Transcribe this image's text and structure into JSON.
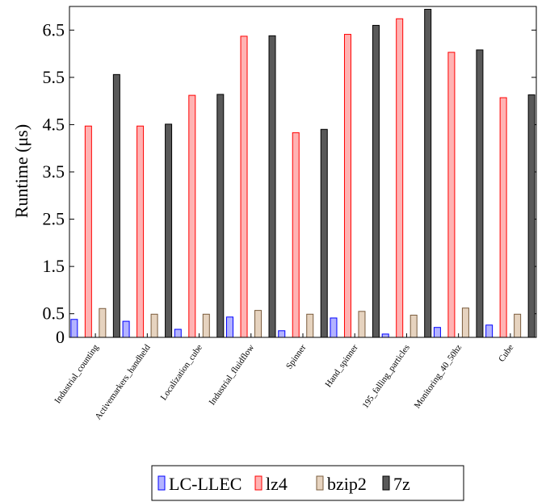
{
  "chart_data": {
    "type": "bar",
    "title": "",
    "xlabel": "",
    "ylabel": "Runtime (μs)",
    "ylim": [
      0,
      7
    ],
    "yticks": [
      0,
      0.5,
      1.5,
      2.5,
      3.5,
      4.5,
      5.5,
      6.5
    ],
    "grid": false,
    "legend_position": "bottom",
    "categories": [
      "Industrial_counting",
      "Activemarkers_handheld",
      "Localization_cube",
      "Industrial_fluidflow",
      "Spinner",
      "Hand_spinner",
      "195_falling_particles",
      "Monitoring_40_50hz",
      "Cube"
    ],
    "series": [
      {
        "name": "LC-LLEC",
        "color": "#b3b3ff",
        "stroke": "#0000ff",
        "values": [
          0.38,
          0.34,
          0.17,
          0.43,
          0.14,
          0.41,
          0.07,
          0.21,
          0.26
        ]
      },
      {
        "name": "lz4",
        "color": "#ffb3b3",
        "stroke": "#ff0000",
        "values": [
          4.47,
          4.47,
          5.12,
          6.37,
          4.33,
          6.41,
          6.74,
          6.03,
          5.07
        ]
      },
      {
        "name": "bzip2",
        "color": "#e6d3bf",
        "stroke": "#7a5c3d",
        "values": [
          0.61,
          0.49,
          0.49,
          0.57,
          0.49,
          0.55,
          0.47,
          0.62,
          0.49
        ]
      },
      {
        "name": "7z",
        "color": "#595959",
        "stroke": "#000000",
        "values": [
          5.56,
          4.51,
          5.14,
          6.38,
          4.4,
          6.6,
          6.94,
          6.08,
          5.13
        ]
      }
    ]
  }
}
